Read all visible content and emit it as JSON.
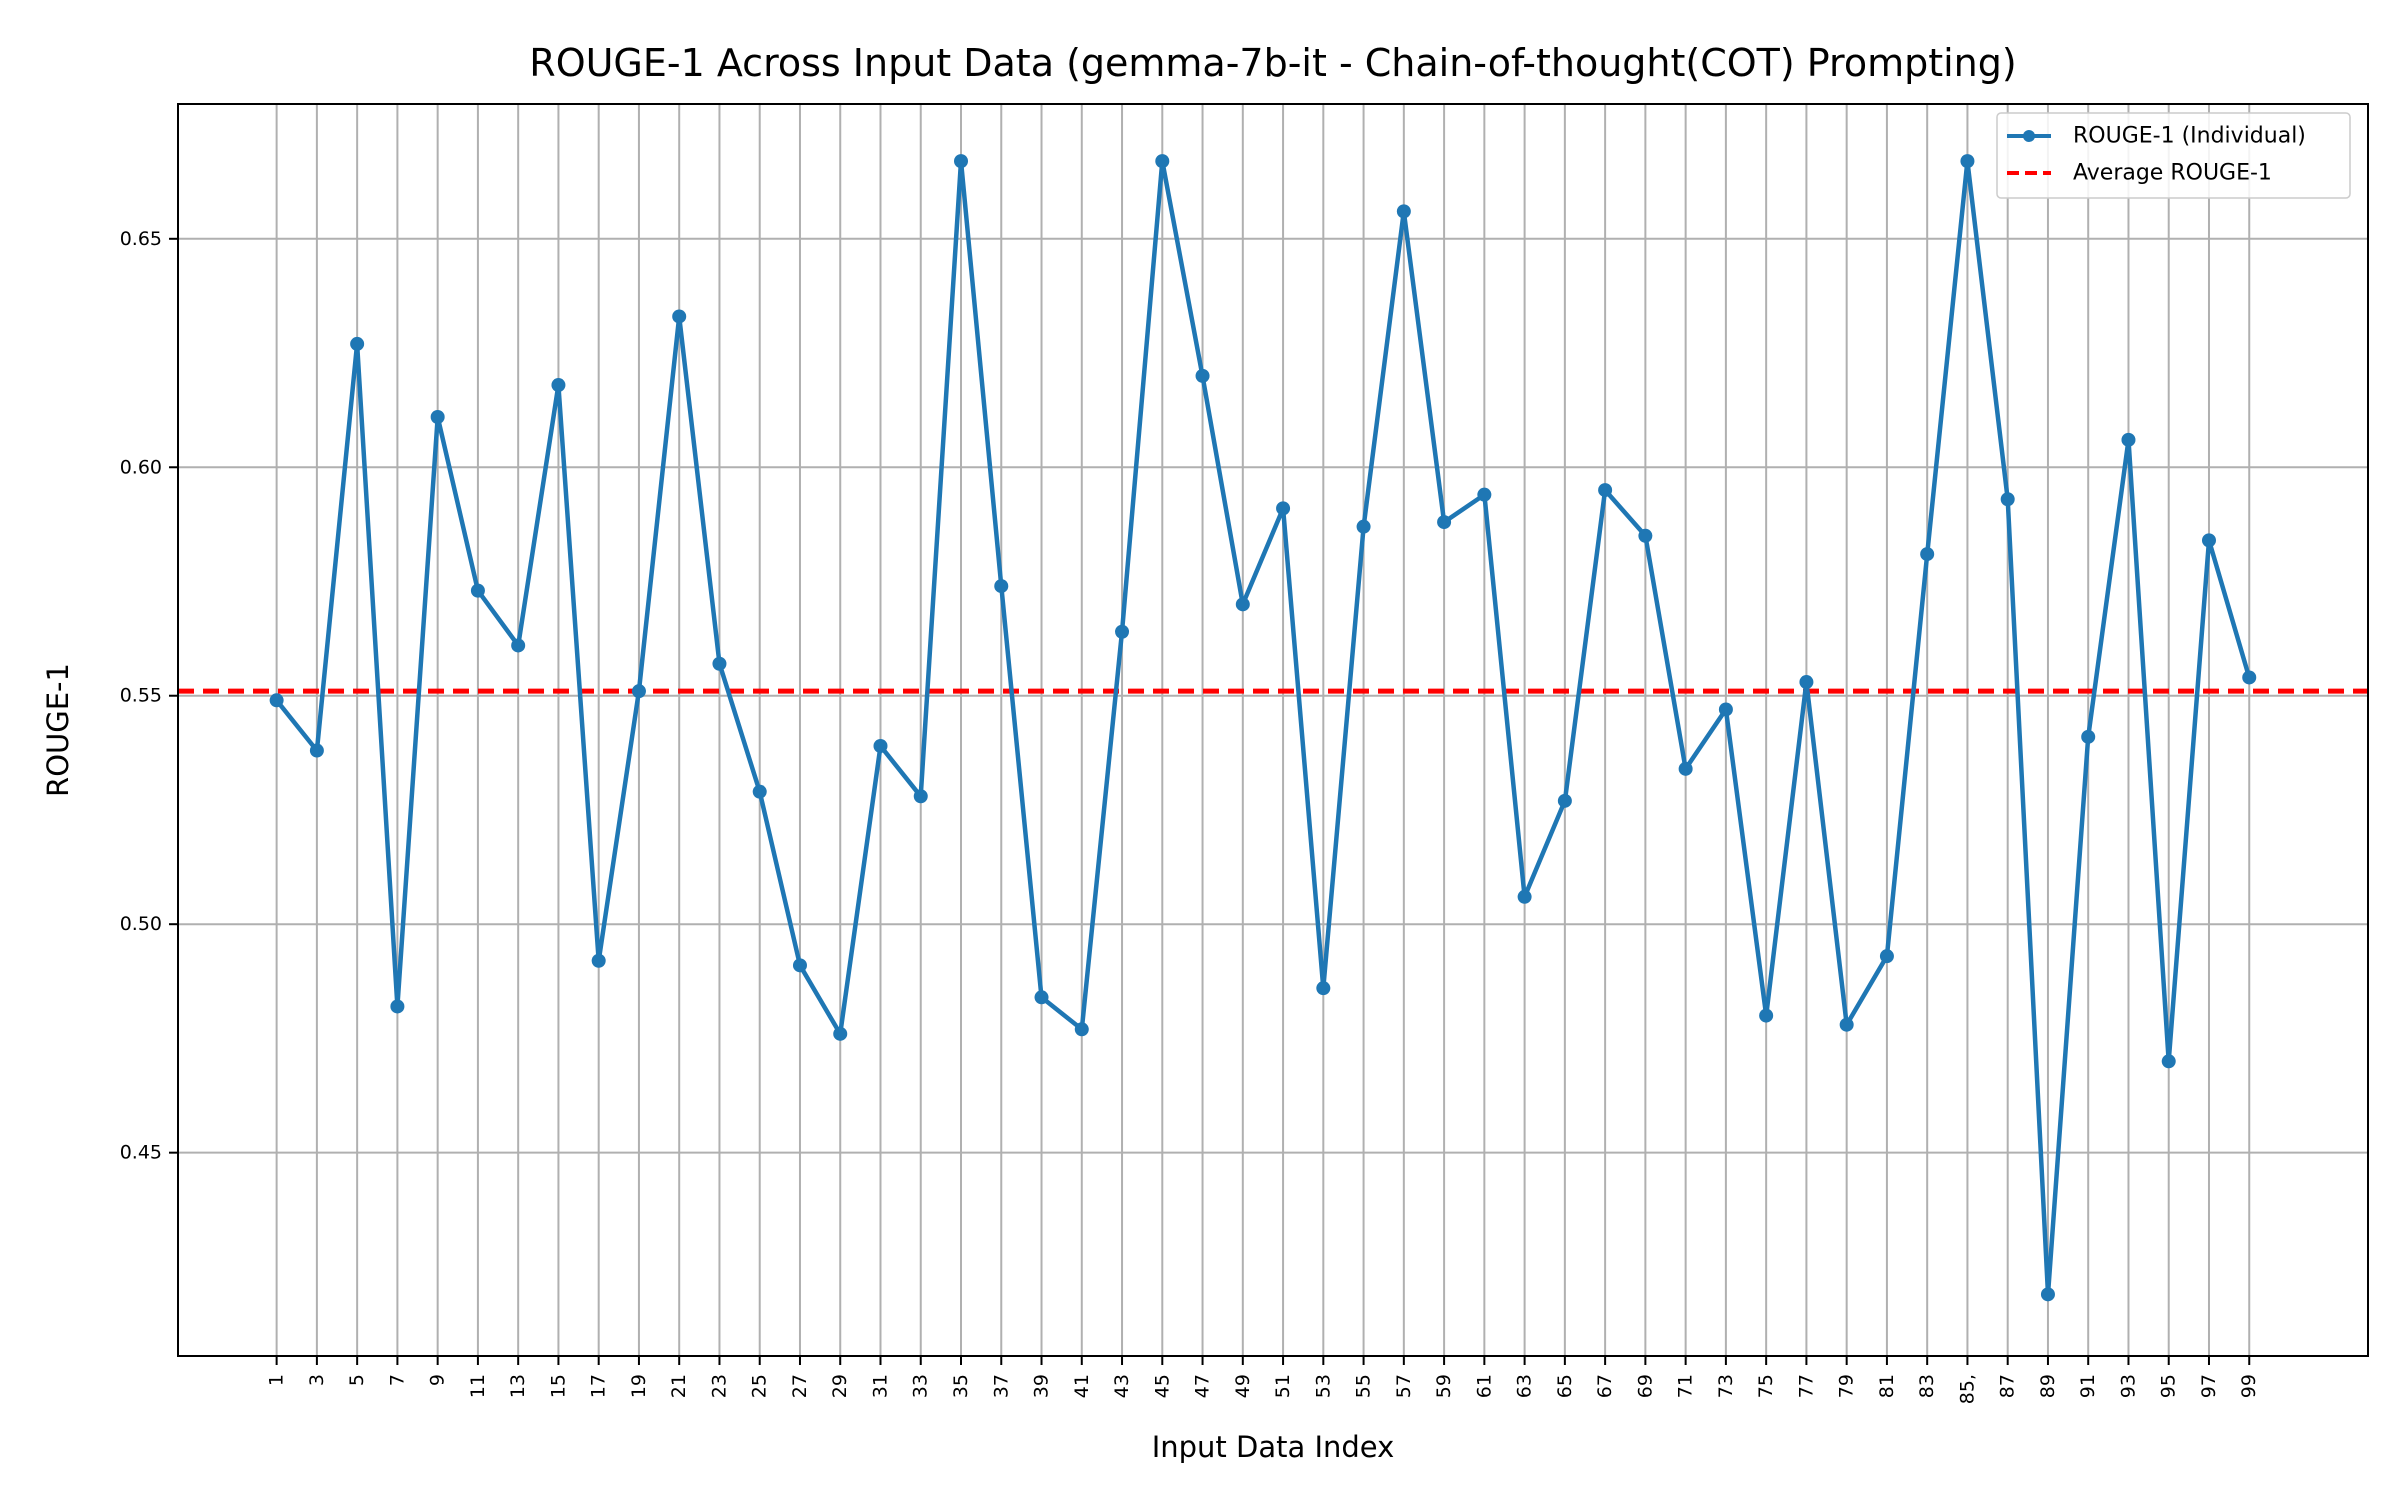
{
  "chart_data": {
    "type": "line",
    "title": "ROUGE-1 Across Input Data (gemma-7b-it - Chain-of-thought(COT) Prompting)",
    "xlabel": "Input Data Index",
    "ylabel": "ROUGE-1",
    "x": [
      1,
      3,
      5,
      7,
      9,
      11,
      13,
      15,
      17,
      19,
      21,
      23,
      25,
      27,
      29,
      31,
      33,
      35,
      37,
      39,
      41,
      43,
      45,
      47,
      49,
      51,
      53,
      55,
      57,
      59,
      61,
      63,
      65,
      67,
      69,
      71,
      73,
      75,
      77,
      79,
      81,
      83,
      85,
      87,
      89,
      91,
      93,
      95,
      97,
      99
    ],
    "xticks": [
      "1",
      "3",
      "5",
      "7",
      "9",
      "11",
      "13",
      "15",
      "17",
      "19",
      "21",
      "23",
      "25",
      "27",
      "29",
      "31",
      "33",
      "35",
      "37",
      "39",
      "41",
      "43",
      "45",
      "47",
      "49",
      "51",
      "53",
      "55",
      "57",
      "59",
      "61",
      "63",
      "65",
      "67",
      "69",
      "71",
      "73",
      "75",
      "77",
      "79",
      "81",
      "83",
      "85,",
      "87",
      "89",
      "91",
      "93",
      "95",
      "97",
      "99"
    ],
    "yticks": [
      "0.45",
      "0.50",
      "0.55",
      "0.60",
      "0.65"
    ],
    "ytick_values": [
      0.45,
      0.5,
      0.55,
      0.6,
      0.65
    ],
    "xlim": [
      -3.9,
      104.9
    ],
    "ylim": [
      0.4055,
      0.6795
    ],
    "grid": true,
    "legend_position": "top-right",
    "series": [
      {
        "name": "ROUGE-1 (Individual)",
        "color": "#1f77b4",
        "style": "line-with-markers",
        "values": [
          0.549,
          0.538,
          0.627,
          0.482,
          0.611,
          0.573,
          0.561,
          0.618,
          0.492,
          0.551,
          0.633,
          0.557,
          0.529,
          0.491,
          0.476,
          0.539,
          0.528,
          0.667,
          0.574,
          0.484,
          0.477,
          0.564,
          0.667,
          0.62,
          0.57,
          0.591,
          0.486,
          0.587,
          0.656,
          0.588,
          0.594,
          0.506,
          0.527,
          0.595,
          0.585,
          0.534,
          0.547,
          0.48,
          0.553,
          0.478,
          0.493,
          0.581,
          0.667,
          0.593,
          0.419,
          0.541,
          0.606,
          0.47,
          0.584,
          0.554
        ]
      }
    ],
    "reference_lines": [
      {
        "name": "Average ROUGE-1",
        "value": 0.551,
        "color": "#ff0000",
        "style": "dashed"
      }
    ]
  }
}
